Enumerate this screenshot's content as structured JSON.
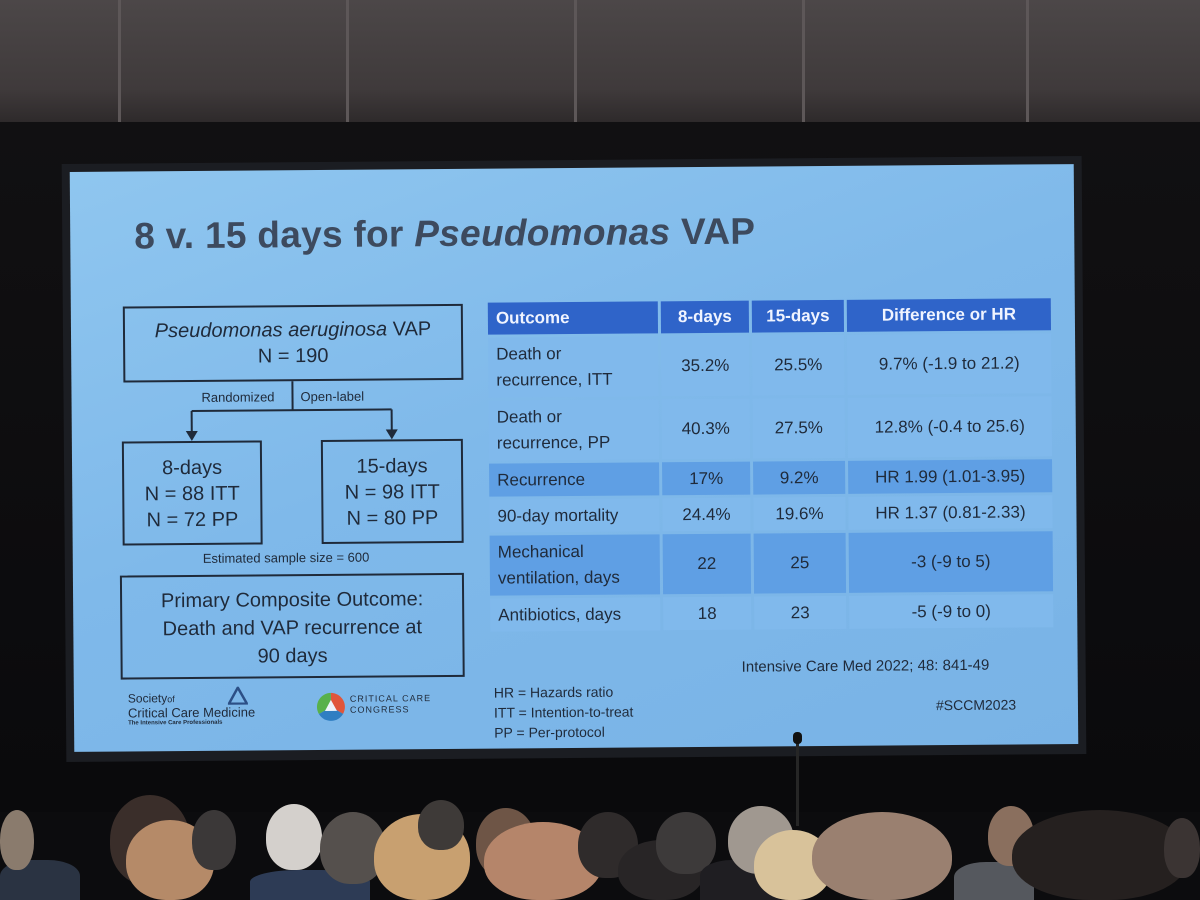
{
  "slide": {
    "title_prefix": "8 v. 15 days for ",
    "title_italic": "Pseudomonas",
    "title_suffix": " VAP"
  },
  "flowchart": {
    "population_italic": "Pseudomonas aeruginosa",
    "population_suffix": " VAP",
    "population_n": "N = 190",
    "randomized_label": "Randomized",
    "openlabel_label": "Open-label",
    "arm8": {
      "title": "8-days",
      "itt": "N = 88 ITT",
      "pp": "N = 72 PP"
    },
    "arm15": {
      "title": "15-days",
      "itt": "N = 98 ITT",
      "pp": "N = 80 PP"
    },
    "sample_size": "Estimated sample size = 600",
    "primary_outcome": [
      "Primary Composite Outcome:",
      "Death and VAP recurrence at",
      "90 days"
    ]
  },
  "table": {
    "headers": [
      "Outcome",
      "8-days",
      "15-days",
      "Difference or HR"
    ],
    "rows": [
      {
        "outcome": [
          "Death or",
          "recurrence, ITT"
        ],
        "d8": "35.2%",
        "d15": "25.5%",
        "diff": "9.7% (-1.9 to 21.2)"
      },
      {
        "outcome": [
          "Death or",
          "recurrence, PP"
        ],
        "d8": "40.3%",
        "d15": "27.5%",
        "diff": "12.8% (-0.4 to 25.6)"
      },
      {
        "outcome": [
          "Recurrence"
        ],
        "d8": "17%",
        "d15": "9.2%",
        "diff": "HR 1.99 (1.01-3.95)"
      },
      {
        "outcome": [
          "90-day mortality"
        ],
        "d8": "24.4%",
        "d15": "19.6%",
        "diff": "HR 1.37 (0.81-2.33)"
      },
      {
        "outcome": [
          "Mechanical",
          "ventilation, days"
        ],
        "d8": "22",
        "d15": "25",
        "diff": "-3 (-9 to 5)"
      },
      {
        "outcome": [
          "Antibiotics, days"
        ],
        "d8": "18",
        "d15": "23",
        "diff": "-5 (-9 to 0)"
      }
    ]
  },
  "footer": {
    "citation": "Intensive Care Med 2022; 48: 841-49",
    "abbreviations": [
      "HR = Hazards ratio",
      "ITT = Intention-to-treat",
      "PP = Per-protocol"
    ],
    "hashtag": "#SCCM2023"
  },
  "logos": {
    "sccm_line1": "Society",
    "sccm_line1_small": "of",
    "sccm_line2": "Critical Care Medicine",
    "sccm_tagline": "The Intensive Care Professionals",
    "ccc_line1": "CRITICAL CARE",
    "ccc_line2": "CONGRESS"
  },
  "colors": {
    "slide_bg": "#7fb9ea",
    "table_header": "#2f64c9",
    "table_row_dark": "#5f9fe4",
    "table_row_light": "#80b9ec",
    "title_text": "#3d4a5e"
  }
}
